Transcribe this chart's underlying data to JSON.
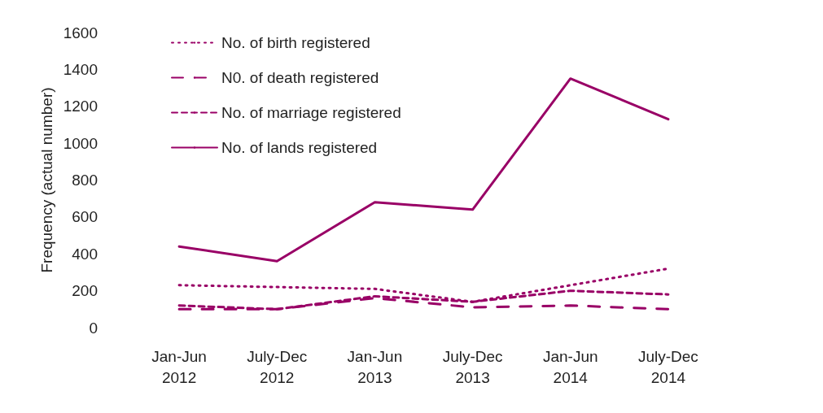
{
  "chart_data": {
    "type": "line",
    "ylabel": "Frequency (actual number)",
    "categories": [
      "Jan-Jun\n2012",
      "July-Dec\n2012",
      "Jan-Jun\n2013",
      "July-Dec\n2013",
      "Jan-Jun\n2014",
      "July-Dec\n2014"
    ],
    "series": [
      {
        "name": "No. of birth registered",
        "color": "#990066",
        "line_style": "dotted",
        "values": [
          230,
          220,
          210,
          140,
          230,
          320
        ]
      },
      {
        "name": "N0. of death registered",
        "color": "#990066",
        "line_style": "dashed",
        "values": [
          100,
          100,
          160,
          110,
          120,
          100
        ]
      },
      {
        "name": "No. of marriage registered",
        "color": "#990066",
        "line_style": "dashed",
        "values": [
          120,
          100,
          170,
          140,
          200,
          180
        ]
      },
      {
        "name": "No. of lands registered",
        "color": "#990066",
        "line_style": "solid",
        "values": [
          440,
          360,
          680,
          640,
          1350,
          1130
        ]
      }
    ],
    "ylim": [
      0,
      1600
    ],
    "yticks": [
      0,
      200,
      400,
      600,
      800,
      1000,
      1200,
      1400,
      1600
    ],
    "grid": false,
    "legend": "top left",
    "marker": "none"
  }
}
